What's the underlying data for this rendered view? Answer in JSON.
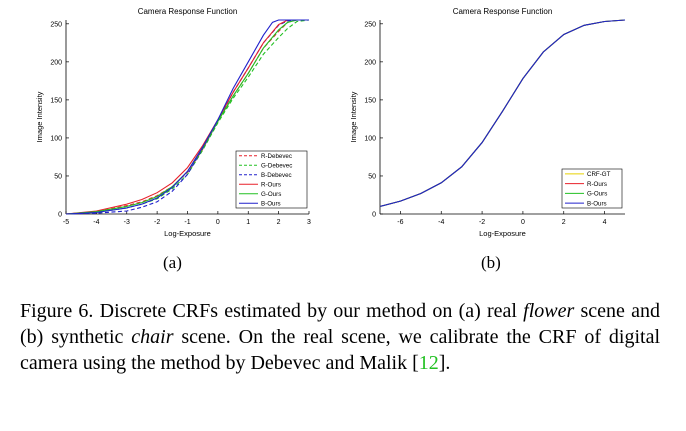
{
  "chart_data": [
    {
      "type": "line",
      "panel": "(a)",
      "title": "Camera Response Function",
      "xlabel": "Log-Exposure",
      "ylabel": "Image Intensity",
      "xlim": [
        -5,
        3
      ],
      "ylim": [
        0,
        255
      ],
      "xticks": [
        -5,
        -4,
        -3,
        -2,
        -1,
        0,
        1,
        2,
        3
      ],
      "yticks": [
        0,
        50,
        100,
        150,
        200,
        250
      ],
      "legend_position": "lower-right",
      "series": [
        {
          "name": "R-Debevec",
          "color": "#e8202a",
          "dash": "dashed",
          "x": [
            -5,
            -4,
            -3,
            -2.5,
            -2,
            -1.5,
            -1,
            -0.5,
            0,
            0.5,
            1,
            1.5,
            2,
            2.3,
            2.6,
            3
          ],
          "y": [
            0,
            3,
            11,
            16,
            24,
            36,
            55,
            85,
            122,
            155,
            185,
            218,
            240,
            252,
            255,
            255
          ]
        },
        {
          "name": "G-Debevec",
          "color": "#22c022",
          "dash": "dashed",
          "x": [
            -5,
            -4,
            -3,
            -2.5,
            -2,
            -1.5,
            -1,
            -0.5,
            0,
            0.5,
            1,
            1.5,
            2,
            2.3,
            2.6,
            3
          ],
          "y": [
            0,
            2,
            8,
            13,
            20,
            33,
            52,
            84,
            120,
            152,
            180,
            210,
            232,
            244,
            253,
            255
          ]
        },
        {
          "name": "B-Debevec",
          "color": "#2020cc",
          "dash": "dashed",
          "x": [
            -5,
            -4,
            -3,
            -2.5,
            -2,
            -1.5,
            -1,
            -0.5,
            0,
            0.5,
            1,
            1.5,
            2,
            2.3,
            2.6,
            3
          ],
          "y": [
            0,
            1,
            4,
            9,
            16,
            30,
            52,
            86,
            122,
            160,
            192,
            225,
            248,
            254,
            255,
            255
          ]
        },
        {
          "name": "R-Ours",
          "color": "#e8202a",
          "dash": "solid",
          "x": [
            -5,
            -4,
            -3,
            -2.5,
            -2,
            -1.5,
            -1,
            -0.5,
            0,
            0.5,
            1,
            1.5,
            2,
            2.3,
            2.6,
            3
          ],
          "y": [
            0,
            4,
            13,
            19,
            28,
            41,
            61,
            90,
            124,
            160,
            192,
            225,
            249,
            255,
            255,
            255
          ]
        },
        {
          "name": "G-Ours",
          "color": "#22c022",
          "dash": "solid",
          "x": [
            -5,
            -4,
            -3,
            -2.5,
            -2,
            -1.5,
            -1,
            -0.5,
            0,
            0.5,
            1,
            1.5,
            2,
            2.3,
            2.6,
            3
          ],
          "y": [
            0,
            3,
            10,
            15,
            23,
            36,
            56,
            87,
            122,
            155,
            185,
            218,
            242,
            252,
            255,
            255
          ]
        },
        {
          "name": "B-Ours",
          "color": "#2020cc",
          "dash": "solid",
          "x": [
            -5,
            -4,
            -3,
            -2.5,
            -2,
            -1.5,
            -1,
            -0.5,
            0,
            0.5,
            1,
            1.5,
            1.8,
            2,
            2.3,
            3
          ],
          "y": [
            0,
            2,
            8,
            13,
            21,
            35,
            56,
            88,
            124,
            165,
            200,
            235,
            252,
            255,
            255,
            255
          ]
        }
      ]
    },
    {
      "type": "line",
      "panel": "(b)",
      "title": "Camera Response Function",
      "xlabel": "Log-Exposure",
      "ylabel": "Image Intensity",
      "xlim": [
        -7,
        5
      ],
      "ylim": [
        0,
        255
      ],
      "xticks": [
        -6,
        -4,
        -2,
        0,
        2,
        4
      ],
      "yticks": [
        0,
        50,
        100,
        150,
        200,
        250
      ],
      "legend_position": "lower-right",
      "series": [
        {
          "name": "CRF-GT",
          "color": "#e6d000",
          "dash": "solid",
          "x": [
            -7,
            -6,
            -5,
            -4,
            -3,
            -2,
            -1,
            0,
            1,
            2,
            3,
            4,
            5
          ],
          "y": [
            10,
            17,
            27,
            41,
            62,
            94,
            135,
            178,
            213,
            236,
            248,
            253,
            255
          ]
        },
        {
          "name": "R-Ours",
          "color": "#e8202a",
          "dash": "solid",
          "x": [
            -7,
            -6,
            -5,
            -4,
            -3,
            -2,
            -1,
            0,
            1,
            2,
            3,
            4,
            5
          ],
          "y": [
            10,
            17,
            27,
            41,
            62,
            94,
            135,
            178,
            213,
            236,
            248,
            253,
            255
          ]
        },
        {
          "name": "G-Ours",
          "color": "#22c022",
          "dash": "solid",
          "x": [
            -7,
            -6,
            -5,
            -4,
            -3,
            -2,
            -1,
            0,
            1,
            2,
            3,
            4,
            5
          ],
          "y": [
            10,
            17,
            27,
            41,
            62,
            94,
            135,
            178,
            213,
            236,
            248,
            253,
            255
          ]
        },
        {
          "name": "B-Ours",
          "color": "#2020cc",
          "dash": "solid",
          "x": [
            -7,
            -6,
            -5,
            -4,
            -3,
            -2,
            -1,
            0,
            1,
            2,
            3,
            4,
            5
          ],
          "y": [
            10,
            17,
            27,
            41,
            62,
            94,
            135,
            178,
            213,
            236,
            248,
            253,
            255
          ]
        }
      ]
    }
  ],
  "panel_labels": [
    "(a)",
    "(b)"
  ],
  "caption": {
    "prefix": "Figure 6.  Discrete CRFs estimated by our method on (a) real ",
    "em1": "flower",
    "mid1": " scene and (b) synthetic ",
    "em2": "chair",
    "mid2": " scene. On the real scene, we calibrate the CRF of digital camera using the method by Debevec and Malik [",
    "ref": "12",
    "suffix": "]."
  }
}
